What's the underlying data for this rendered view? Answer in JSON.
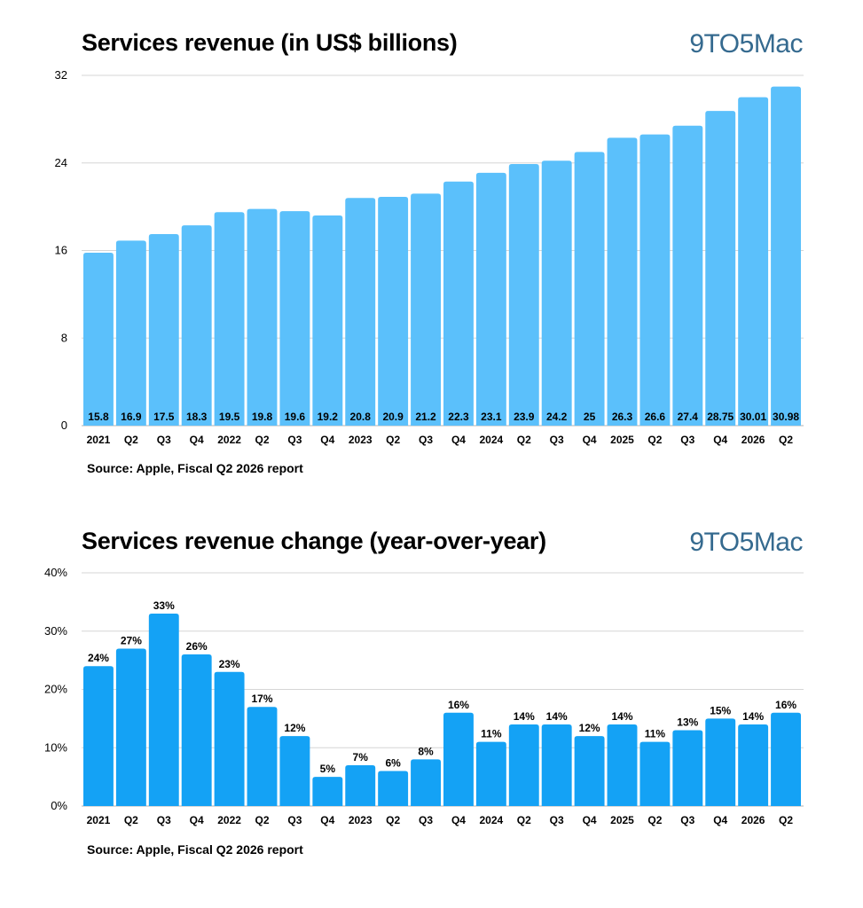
{
  "chart_data": [
    {
      "type": "bar",
      "title": "Services revenue (in US$ billions)",
      "brand": "9TO5Mac",
      "source": "Source: Apple, Fiscal Q2 2026 report",
      "categories": [
        "2021",
        "Q2",
        "Q3",
        "Q4",
        "2022",
        "Q2",
        "Q3",
        "Q4",
        "2023",
        "Q2",
        "Q3",
        "Q4",
        "2024",
        "Q2",
        "Q3",
        "Q4",
        "2025",
        "Q2",
        "Q3",
        "Q4",
        "2026",
        "Q2"
      ],
      "values": [
        15.8,
        16.9,
        17.5,
        18.3,
        19.5,
        19.8,
        19.6,
        19.2,
        20.8,
        20.9,
        21.2,
        22.3,
        23.1,
        23.9,
        24.2,
        25,
        26.3,
        26.6,
        27.4,
        28.75,
        30.01,
        30.98
      ],
      "data_labels": [
        "15.8",
        "16.9",
        "17.5",
        "18.3",
        "19.5",
        "19.8",
        "19.6",
        "19.2",
        "20.8",
        "20.9",
        "21.2",
        "22.3",
        "23.1",
        "23.9",
        "24.2",
        "25",
        "26.3",
        "26.6",
        "27.4",
        "28.75",
        "30.01",
        "30.98"
      ],
      "yticks": [
        "0",
        "8",
        "16",
        "24",
        "32"
      ],
      "ylim": [
        0,
        32
      ],
      "grid": true,
      "bar_color": "#5bc0fb"
    },
    {
      "type": "bar",
      "title": "Services revenue change (year-over-year)",
      "brand": "9TO5Mac",
      "source": "Source: Apple, Fiscal Q2 2026 report",
      "categories": [
        "2021",
        "Q2",
        "Q3",
        "Q4",
        "2022",
        "Q2",
        "Q3",
        "Q4",
        "2023",
        "Q2",
        "Q3",
        "Q4",
        "2024",
        "Q2",
        "Q3",
        "Q4",
        "2025",
        "Q2",
        "Q3",
        "Q4",
        "2026",
        "Q2"
      ],
      "values": [
        24,
        27,
        33,
        26,
        23,
        17,
        12,
        5,
        7,
        6,
        8,
        16,
        11,
        14,
        14,
        12,
        14,
        11,
        13,
        15,
        14,
        16
      ],
      "data_labels": [
        "24%",
        "27%",
        "33%",
        "26%",
        "23%",
        "17%",
        "12%",
        "5%",
        "7%",
        "6%",
        "8%",
        "16%",
        "11%",
        "14%",
        "14%",
        "12%",
        "14%",
        "11%",
        "13%",
        "15%",
        "14%",
        "16%"
      ],
      "yticks": [
        "0%",
        "10%",
        "20%",
        "30%",
        "40%"
      ],
      "ylim": [
        0,
        40
      ],
      "grid": true,
      "bar_color": "#14a2f5"
    }
  ]
}
